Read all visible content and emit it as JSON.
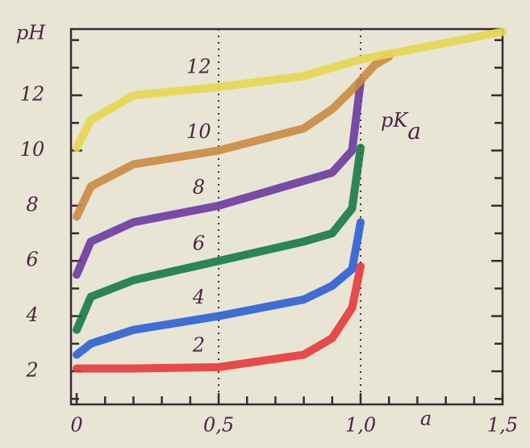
{
  "chart_data": {
    "type": "line",
    "y_label": "pH",
    "x_label": "a",
    "annotation": "pK",
    "annotation_sub": "a",
    "xlim": [
      -0.02,
      1.5
    ],
    "ylim": [
      0.8,
      14.4
    ],
    "xticks": [
      {
        "value": 0,
        "label": "0"
      },
      {
        "value": 0.5,
        "label": "0,5"
      },
      {
        "value": 1.0,
        "label": "1,0"
      },
      {
        "value": 1.5,
        "label": "1,5"
      }
    ],
    "xminor": [
      0.1,
      0.2,
      0.3,
      0.4,
      0.6,
      0.7,
      0.8,
      0.9,
      1.1,
      1.2,
      1.3,
      1.4
    ],
    "yticks": [
      2,
      4,
      6,
      8,
      10,
      12
    ],
    "yminor": [
      1,
      3,
      5,
      7,
      9,
      11,
      13,
      14
    ],
    "vlines": [
      0.5,
      1.0
    ],
    "series": [
      {
        "name": "2",
        "color": "#e5383b",
        "x": [
          0,
          0.05,
          0.2,
          0.5,
          0.8,
          0.9,
          0.97,
          1.0
        ],
        "values": [
          2.1,
          2.1,
          2.1,
          2.15,
          2.6,
          3.2,
          4.3,
          5.8
        ]
      },
      {
        "name": "4",
        "color": "#2c5fd4",
        "x": [
          0,
          0.05,
          0.2,
          0.5,
          0.8,
          0.9,
          0.97,
          1.0
        ],
        "values": [
          2.6,
          3.0,
          3.5,
          4.0,
          4.6,
          5.1,
          5.7,
          7.4
        ]
      },
      {
        "name": "6",
        "color": "#167a47",
        "x": [
          0,
          0.05,
          0.2,
          0.5,
          0.8,
          0.9,
          0.97,
          1.0
        ],
        "values": [
          3.5,
          4.7,
          5.3,
          6.0,
          6.7,
          7.0,
          7.9,
          10.1
        ]
      },
      {
        "name": "8",
        "color": "#6b3a9e",
        "x": [
          0,
          0.05,
          0.2,
          0.5,
          0.8,
          0.9,
          0.97,
          1.0
        ],
        "values": [
          5.5,
          6.7,
          7.4,
          8.0,
          8.9,
          9.2,
          10.0,
          12.5
        ]
      },
      {
        "name": "10",
        "color": "#c98b40",
        "x": [
          0,
          0.05,
          0.2,
          0.5,
          0.8,
          0.9,
          0.97,
          1.05,
          1.1
        ],
        "values": [
          7.6,
          8.7,
          9.5,
          10.0,
          10.8,
          11.5,
          12.2,
          13.1,
          13.4
        ]
      },
      {
        "name": "12",
        "color": "#e6d64c",
        "x": [
          0,
          0.05,
          0.2,
          0.5,
          0.8,
          1.0,
          1.2,
          1.5
        ],
        "values": [
          10.1,
          11.1,
          12.0,
          12.3,
          12.7,
          13.3,
          13.7,
          14.3
        ]
      }
    ]
  }
}
